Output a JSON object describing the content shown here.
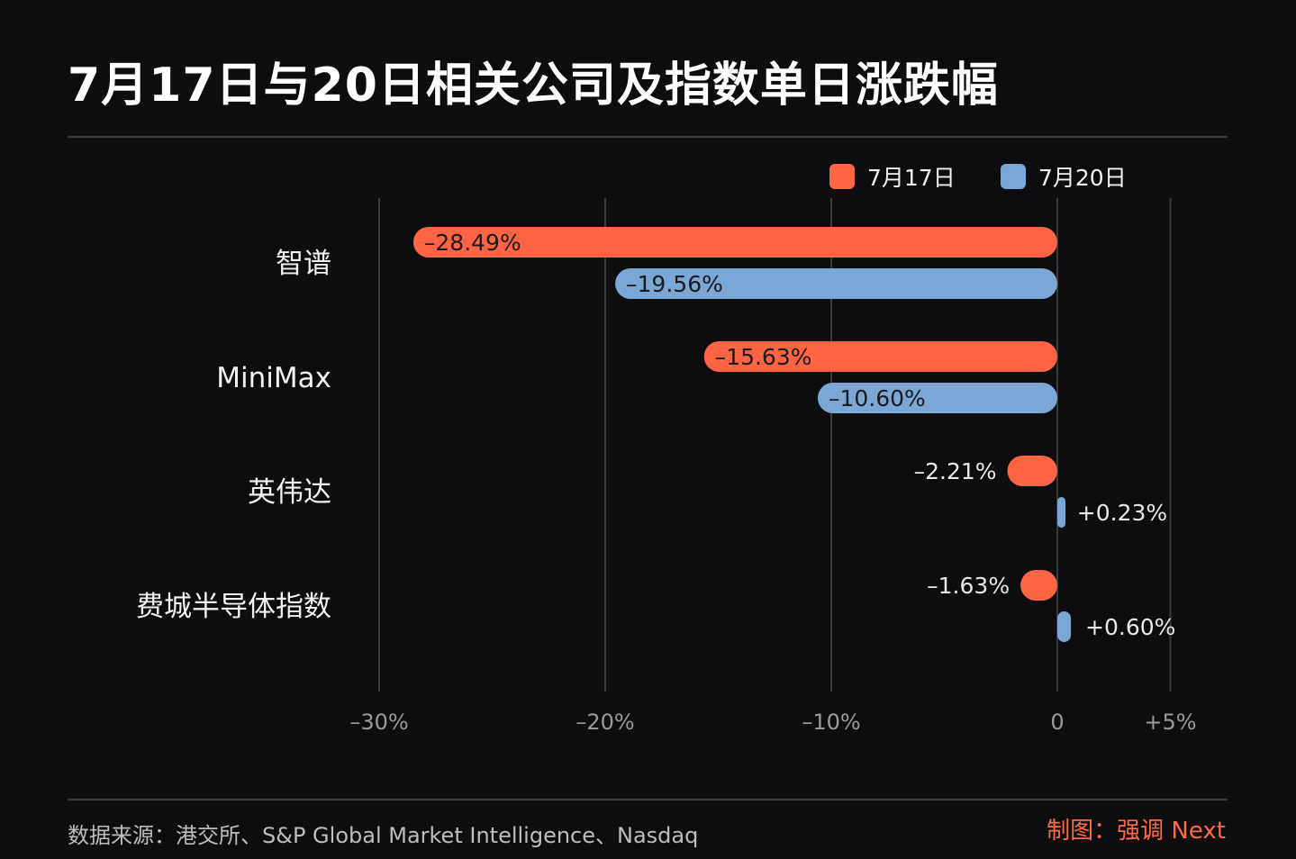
{
  "title": "7月17日与20日相关公司及指数单日涨跌幅",
  "footer": {
    "source": "数据来源：港交所、S&P Global Market Intelligence、Nasdaq",
    "credit": "制图：强调 Next"
  },
  "colors": {
    "background": "#0d0d0f",
    "series_jul17": "#ff6444",
    "series_jul20": "#7aa7d6",
    "grid": "#3a3a3a",
    "credit": "#ff6a45"
  },
  "chart_data": {
    "type": "bar",
    "orientation": "horizontal",
    "categories": [
      "智谱",
      "MiniMax",
      "英伟达",
      "费城半导体指数"
    ],
    "series": [
      {
        "name": "7月17日",
        "values": [
          -28.49,
          -15.63,
          -2.21,
          -1.63
        ],
        "labels": [
          "–28.49%",
          "–15.63%",
          "–2.21%",
          "–1.63%"
        ]
      },
      {
        "name": "7月20日",
        "values": [
          -19.56,
          -10.6,
          0.23,
          0.6
        ],
        "labels": [
          "–19.56%",
          "–10.60%",
          "+0.23%",
          "+0.60%"
        ]
      }
    ],
    "x_ticks": [
      -30,
      -20,
      -10,
      0,
      5
    ],
    "x_tick_labels": [
      "–30%",
      "–20%",
      "–10%",
      "0",
      "+5%"
    ],
    "xlim": [
      -30,
      5
    ],
    "grid": true,
    "legend": "top-right"
  }
}
